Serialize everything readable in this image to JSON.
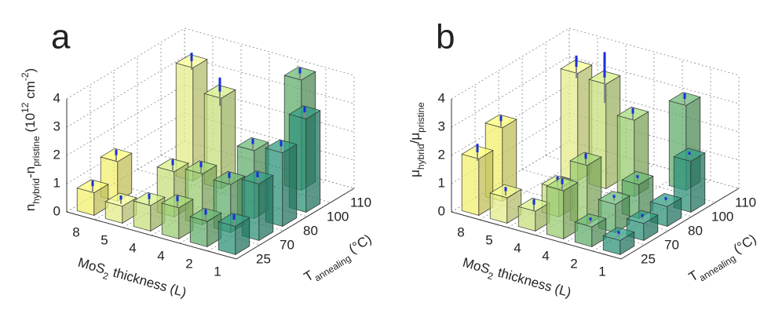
{
  "chart_data": [
    {
      "type": "bar3d",
      "panel": "a",
      "zlabel": [
        "n",
        "hybrid",
        "-n",
        "pristine",
        " (10",
        "12",
        " cm",
        "-2",
        ")"
      ],
      "zlabel_style": [
        "",
        "sub",
        "",
        "sub",
        "",
        "sup",
        "",
        "sup",
        ""
      ],
      "xlabel": [
        "MoS",
        "2",
        " thickness (L)"
      ],
      "xlabel_style": [
        "",
        "sub",
        ""
      ],
      "ylabel": [
        "T",
        "annealing",
        " (°C)"
      ],
      "ylabel_style": [
        "",
        "sub",
        ""
      ],
      "categories": [
        "8",
        "5",
        "4",
        "4",
        "2",
        "1"
      ],
      "depth_categories": [
        "25",
        "70",
        "80",
        "100",
        "110"
      ],
      "colors": [
        "#f2ef6e",
        "#e3ec8a",
        "#c5df7c",
        "#9bcb72",
        "#64ae6e",
        "#2e937a"
      ],
      "values": [
        [
          0.8,
          1.4,
          null,
          null,
          null
        ],
        [
          0.6,
          null,
          null,
          4.0,
          null
        ],
        [
          0.9,
          1.6,
          null,
          3.2,
          null
        ],
        [
          1.1,
          1.8,
          null,
          null,
          null
        ],
        [
          0.9,
          1.7,
          2.4,
          null,
          3.9
        ],
        [
          1.0,
          2.0,
          2.6,
          3.3,
          null
        ]
      ],
      "errors": [
        [
          0.2,
          0.2,
          null,
          null,
          null
        ],
        [
          0.15,
          null,
          null,
          0.3,
          null
        ],
        [
          0.2,
          0.2,
          null,
          0.5,
          null
        ],
        [
          0.2,
          0.2,
          null,
          null,
          null
        ],
        [
          0.2,
          0.2,
          0.2,
          null,
          0.2
        ],
        [
          0.2,
          0.2,
          0.2,
          0.2,
          null
        ]
      ],
      "zlim": [
        0,
        4
      ],
      "zticks": [
        0,
        1,
        2,
        3,
        4
      ],
      "grid": true
    },
    {
      "type": "bar3d",
      "panel": "b",
      "zlabel": [
        "μ",
        "hybrid",
        "/μ",
        "pristine"
      ],
      "zlabel_style": [
        "",
        "sub",
        "",
        "sub"
      ],
      "xlabel": [
        "MoS",
        "2",
        " thickness (L)"
      ],
      "xlabel_style": [
        "",
        "sub",
        ""
      ],
      "ylabel": [
        "T",
        "annealing",
        " (°C)"
      ],
      "ylabel_style": [
        "",
        "sub",
        ""
      ],
      "categories": [
        "8",
        "5",
        "4",
        "4",
        "2",
        "1"
      ],
      "depth_categories": [
        "25",
        "70",
        "80",
        "100",
        "110"
      ],
      "colors": [
        "#f2ef6e",
        "#e3ec8a",
        "#c5df7c",
        "#9bcb72",
        "#64ae6e",
        "#2e937a"
      ],
      "values": [
        [
          2.0,
          2.6,
          null,
          null,
          null
        ],
        [
          0.9,
          null,
          null,
          3.8,
          null
        ],
        [
          0.7,
          1.0,
          null,
          3.7,
          null
        ],
        [
          1.7,
          2.1,
          null,
          2.7,
          null
        ],
        [
          0.7,
          1.0,
          1.2,
          null,
          3.0
        ],
        [
          0.5,
          0.6,
          0.7,
          1.8,
          null
        ]
      ],
      "errors": [
        [
          0.3,
          0.2,
          null,
          null,
          null
        ],
        [
          0.15,
          null,
          null,
          0.4,
          null
        ],
        [
          0.2,
          0.2,
          null,
          0.9,
          null
        ],
        [
          0.2,
          0.2,
          null,
          0.2,
          null
        ],
        [
          0.1,
          0.1,
          0.1,
          null,
          0.2
        ],
        [
          0.1,
          0.1,
          0.1,
          0.1,
          null
        ]
      ],
      "zlim": [
        0,
        4
      ],
      "zticks": [
        0,
        1,
        2,
        3,
        4
      ],
      "grid": true
    }
  ]
}
